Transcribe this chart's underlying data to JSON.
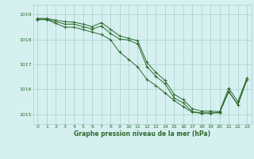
{
  "xlabel": "Graphe pression niveau de la mer (hPa)",
  "background_color": "#d6f0f0",
  "grid_color": "#a8cece",
  "line_color": "#2d6a2d",
  "xlim": [
    -0.5,
    23.5
  ],
  "ylim": [
    1014.6,
    1019.4
  ],
  "yticks": [
    1015,
    1016,
    1017,
    1018,
    1019
  ],
  "xticks": [
    0,
    1,
    2,
    3,
    4,
    5,
    6,
    7,
    8,
    9,
    10,
    11,
    12,
    13,
    14,
    15,
    16,
    17,
    18,
    19,
    20,
    21,
    22,
    23
  ],
  "hours": [
    0,
    1,
    2,
    3,
    4,
    5,
    6,
    7,
    8,
    9,
    10,
    11,
    12,
    13,
    14,
    15,
    16,
    17,
    18,
    19,
    20,
    21,
    22,
    23
  ],
  "line1": [
    1018.85,
    1018.85,
    1018.78,
    1018.72,
    1018.7,
    1018.62,
    1018.52,
    1018.68,
    1018.42,
    1018.15,
    1018.05,
    1017.95,
    1017.08,
    1016.68,
    1016.35,
    1015.8,
    1015.58,
    1015.22,
    1015.12,
    1015.12,
    1015.1,
    1016.05,
    1015.5,
    1016.45
  ],
  "line2": [
    1018.82,
    1018.82,
    1018.72,
    1018.62,
    1018.62,
    1018.52,
    1018.42,
    1018.55,
    1018.25,
    1018.02,
    1017.98,
    1017.82,
    1016.92,
    1016.52,
    1016.22,
    1015.65,
    1015.45,
    1015.1,
    1015.05,
    1015.05,
    1015.05,
    1015.9,
    1015.38,
    1016.38
  ],
  "line3": [
    1018.8,
    1018.8,
    1018.65,
    1018.5,
    1018.5,
    1018.4,
    1018.3,
    1018.2,
    1018.0,
    1017.5,
    1017.2,
    1016.9,
    1016.4,
    1016.15,
    1015.85,
    1015.55,
    1015.3,
    1015.08,
    1015.03,
    1015.03,
    1015.08,
    1015.92,
    1015.38,
    1016.38
  ]
}
